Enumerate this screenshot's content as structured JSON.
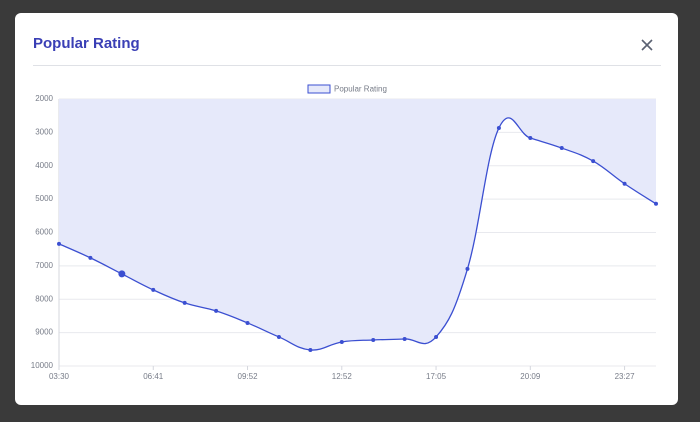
{
  "modal": {
    "title": "Popular Rating"
  },
  "chart_data": {
    "type": "line",
    "categories": [
      "03:30",
      null,
      null,
      "06:41",
      null,
      null,
      "09:52",
      null,
      null,
      "12:52",
      null,
      null,
      "17:05",
      null,
      null,
      "20:09",
      null,
      null,
      "23:27",
      null
    ],
    "series": [
      {
        "name": "Popular Rating",
        "color": "#3b4fd1",
        "fill_color": "#e6e9fa",
        "values": [
          6340,
          6760,
          7240,
          7720,
          8110,
          8350,
          8710,
          9130,
          9520,
          9280,
          9220,
          9190,
          9130,
          7090,
          2870,
          3170,
          3470,
          3860,
          4540,
          5140
        ]
      }
    ],
    "ylim": [
      2000,
      10000
    ],
    "yticks": [
      2000,
      3000,
      4000,
      5000,
      6000,
      7000,
      8000,
      9000,
      10000
    ],
    "y_reversed": true,
    "fill": "start",
    "grid": true,
    "legend": "top"
  }
}
